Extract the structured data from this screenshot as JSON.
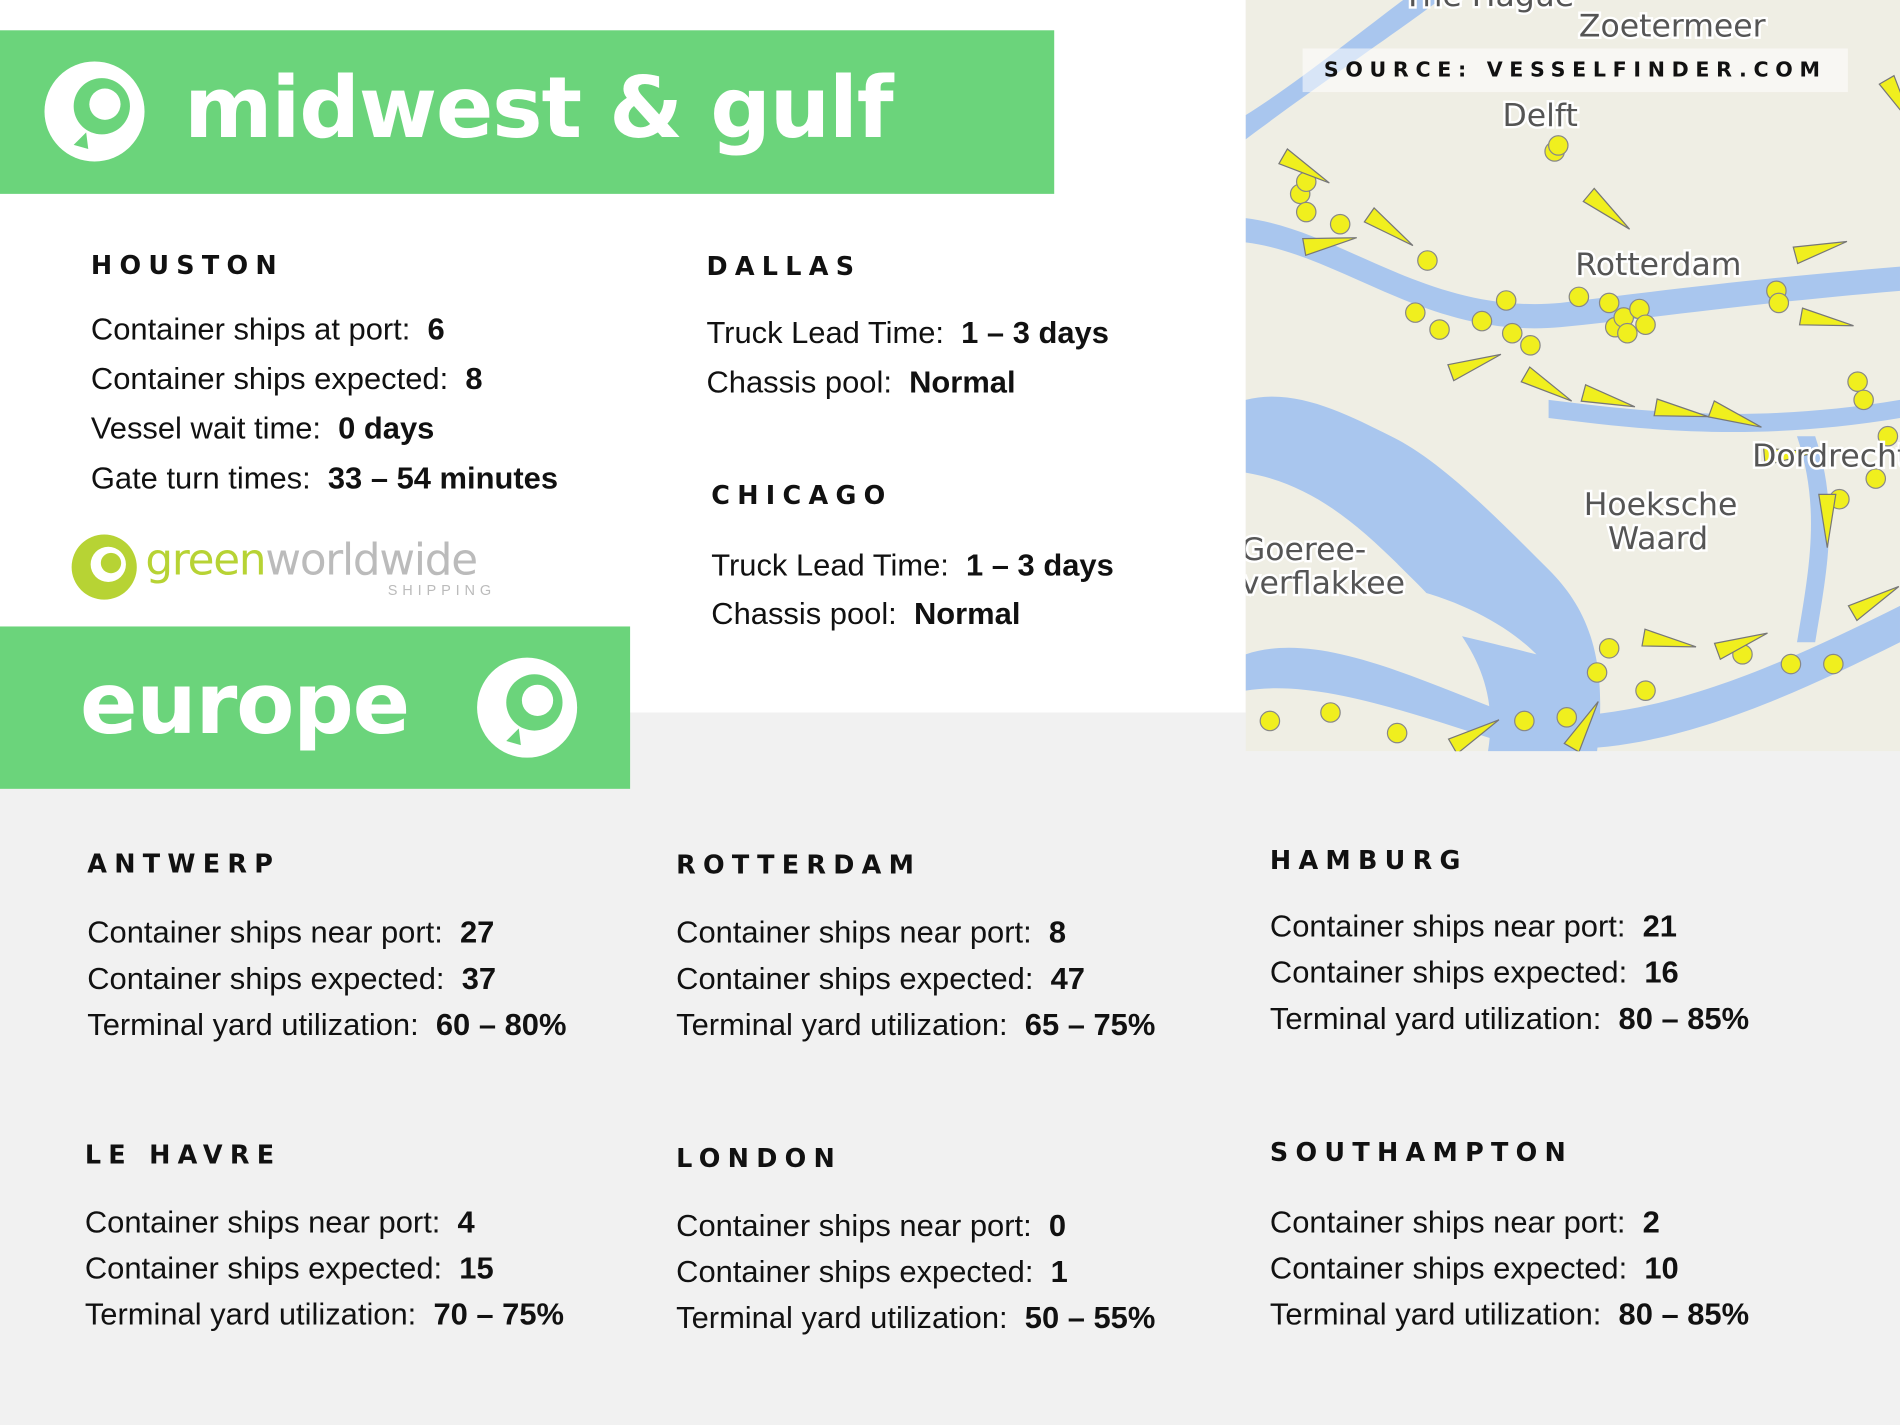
{
  "sections": [
    {
      "title": "midwest & gulf",
      "ports": [
        {
          "name": "HOUSTON",
          "rows": [
            {
              "label": "Container ships at port:",
              "value": "6"
            },
            {
              "label": "Container ships expected:",
              "value": "8"
            },
            {
              "label": "Vessel wait time:",
              "value": "0  days"
            },
            {
              "label": "Gate turn times:",
              "value": "33  –  54 minutes"
            }
          ]
        },
        {
          "name": "DALLAS",
          "rows": [
            {
              "label": "Truck Lead Time:",
              "value": "1 – 3 days"
            },
            {
              "label": "Chassis pool:",
              "value": "Normal"
            }
          ]
        },
        {
          "name": "CHICAGO",
          "rows": [
            {
              "label": "Truck Lead Time:",
              "value": "1 – 3 days"
            },
            {
              "label": "Chassis pool:",
              "value": "Normal"
            }
          ]
        }
      ]
    },
    {
      "title": "europe",
      "ports": [
        {
          "name": "ANTWERP",
          "rows": [
            {
              "label": "Container ships near port:",
              "value": "27"
            },
            {
              "label": "Container ships expected:",
              "value": "37"
            },
            {
              "label": "Terminal yard utilization:",
              "value": "60 – 80%"
            }
          ]
        },
        {
          "name": "ROTTERDAM",
          "rows": [
            {
              "label": "Container ships near port:",
              "value": "8"
            },
            {
              "label": "Container ships expected:",
              "value": "47"
            },
            {
              "label": "Terminal yard utilization:",
              "value": "65 – 75%"
            }
          ]
        },
        {
          "name": "HAMBURG",
          "rows": [
            {
              "label": "Container ships near port:",
              "value": "21"
            },
            {
              "label": "Container ships expected:",
              "value": "16"
            },
            {
              "label": "Terminal yard utilization:",
              "value": "80 – 85%"
            }
          ]
        },
        {
          "name": "LE  HAVRE",
          "rows": [
            {
              "label": "Container ships near port:",
              "value": "4"
            },
            {
              "label": "Container ships expected:",
              "value": "15"
            },
            {
              "label": "Terminal yard utilization:",
              "value": "70 – 75%"
            }
          ]
        },
        {
          "name": "LONDON",
          "rows": [
            {
              "label": "Container ships near port:",
              "value": "0"
            },
            {
              "label": "Container ships expected:",
              "value": "1"
            },
            {
              "label": "Terminal yard utilization:",
              "value": "50 – 55%"
            }
          ]
        },
        {
          "name": "SOUTHAMPTON",
          "rows": [
            {
              "label": "Container ships near port:",
              "value": "2"
            },
            {
              "label": "Container ships expected:",
              "value": "10"
            },
            {
              "label": "Terminal yard utilization:",
              "value": "80 – 85%"
            }
          ]
        }
      ]
    }
  ],
  "logo": {
    "green": "green",
    "gray": "worldwide",
    "tagline": "SHIPPING"
  },
  "map": {
    "source": "SOURCE: VESSELFINDER.COM",
    "places": [
      "The Hague",
      "Zoetermeer",
      "Delft",
      "Rotterdam",
      "Hoeksche",
      "Waard",
      "Goeree-",
      "verflakkee",
      "Dordrecht"
    ]
  }
}
